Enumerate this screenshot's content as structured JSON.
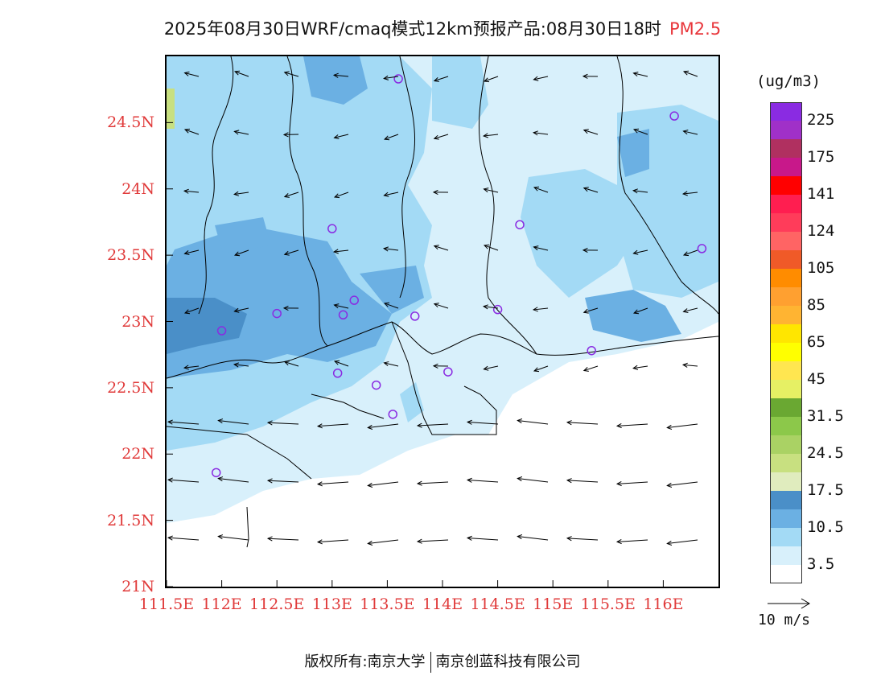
{
  "header": {
    "title": "2025年08月30日WRF/cmaq模式12km预报产品:08月30日18时",
    "pollutant": "PM2.5"
  },
  "map": {
    "x_axis": {
      "ticks": [
        "111.5E",
        "112E",
        "112.5E",
        "113E",
        "113.5E",
        "114E",
        "114.5E",
        "115E",
        "115.5E",
        "116E"
      ],
      "range_lon": [
        111.5,
        116.5
      ]
    },
    "y_axis": {
      "ticks": [
        "21N",
        "21.5N",
        "22N",
        "22.5N",
        "23N",
        "23.5N",
        "24N",
        "24.5N"
      ],
      "range_lat": [
        21.0,
        25.0
      ]
    },
    "stations": [
      {
        "lon": 113.6,
        "lat": 24.83
      },
      {
        "lon": 116.1,
        "lat": 24.55
      },
      {
        "lon": 113.0,
        "lat": 23.7
      },
      {
        "lon": 114.7,
        "lat": 23.73
      },
      {
        "lon": 116.35,
        "lat": 23.55
      },
      {
        "lon": 112.5,
        "lat": 23.06
      },
      {
        "lon": 113.1,
        "lat": 23.05
      },
      {
        "lon": 113.2,
        "lat": 23.16
      },
      {
        "lon": 113.75,
        "lat": 23.04
      },
      {
        "lon": 114.5,
        "lat": 23.09
      },
      {
        "lon": 112.0,
        "lat": 22.93
      },
      {
        "lon": 115.35,
        "lat": 22.78
      },
      {
        "lon": 113.05,
        "lat": 22.61
      },
      {
        "lon": 113.4,
        "lat": 22.52
      },
      {
        "lon": 114.05,
        "lat": 22.62
      },
      {
        "lon": 113.55,
        "lat": 22.3
      },
      {
        "lon": 111.95,
        "lat": 21.86
      }
    ],
    "colors": {
      "background": "#ffffff",
      "light": "#d8f0fb",
      "mid": "#a3daf5",
      "dark": "#6bb0e3",
      "darker": "#4a8fc8",
      "station": "#8a2be2",
      "axis_label": "#e03a3a"
    }
  },
  "legend": {
    "unit": "(ug/m3)",
    "colors": [
      "#8a2be2",
      "#a030c8",
      "#b03060",
      "#c8188a",
      "#ff0000",
      "#ff1e50",
      "#ff3c5a",
      "#ff6464",
      "#f05a28",
      "#ff8c00",
      "#ffa030",
      "#ffb432",
      "#ffe600",
      "#ffff00",
      "#ffe650",
      "#e6f064",
      "#6aa832",
      "#8cc84a",
      "#aad264",
      "#c8e080",
      "#e0ecbe",
      "#4a8fc8",
      "#6bb0e3",
      "#a3daf5",
      "#d8f0fb",
      "#ffffff"
    ],
    "labels": [
      "225",
      "175",
      "141",
      "124",
      "105",
      "85",
      "65",
      "45",
      "31.5",
      "24.5",
      "17.5",
      "10.5",
      "3.5"
    ]
  },
  "reference_vector": {
    "label": "10 m/s"
  },
  "footer": {
    "left": "版权所有:南京大学",
    "right": "南京创蓝科技有限公司"
  }
}
